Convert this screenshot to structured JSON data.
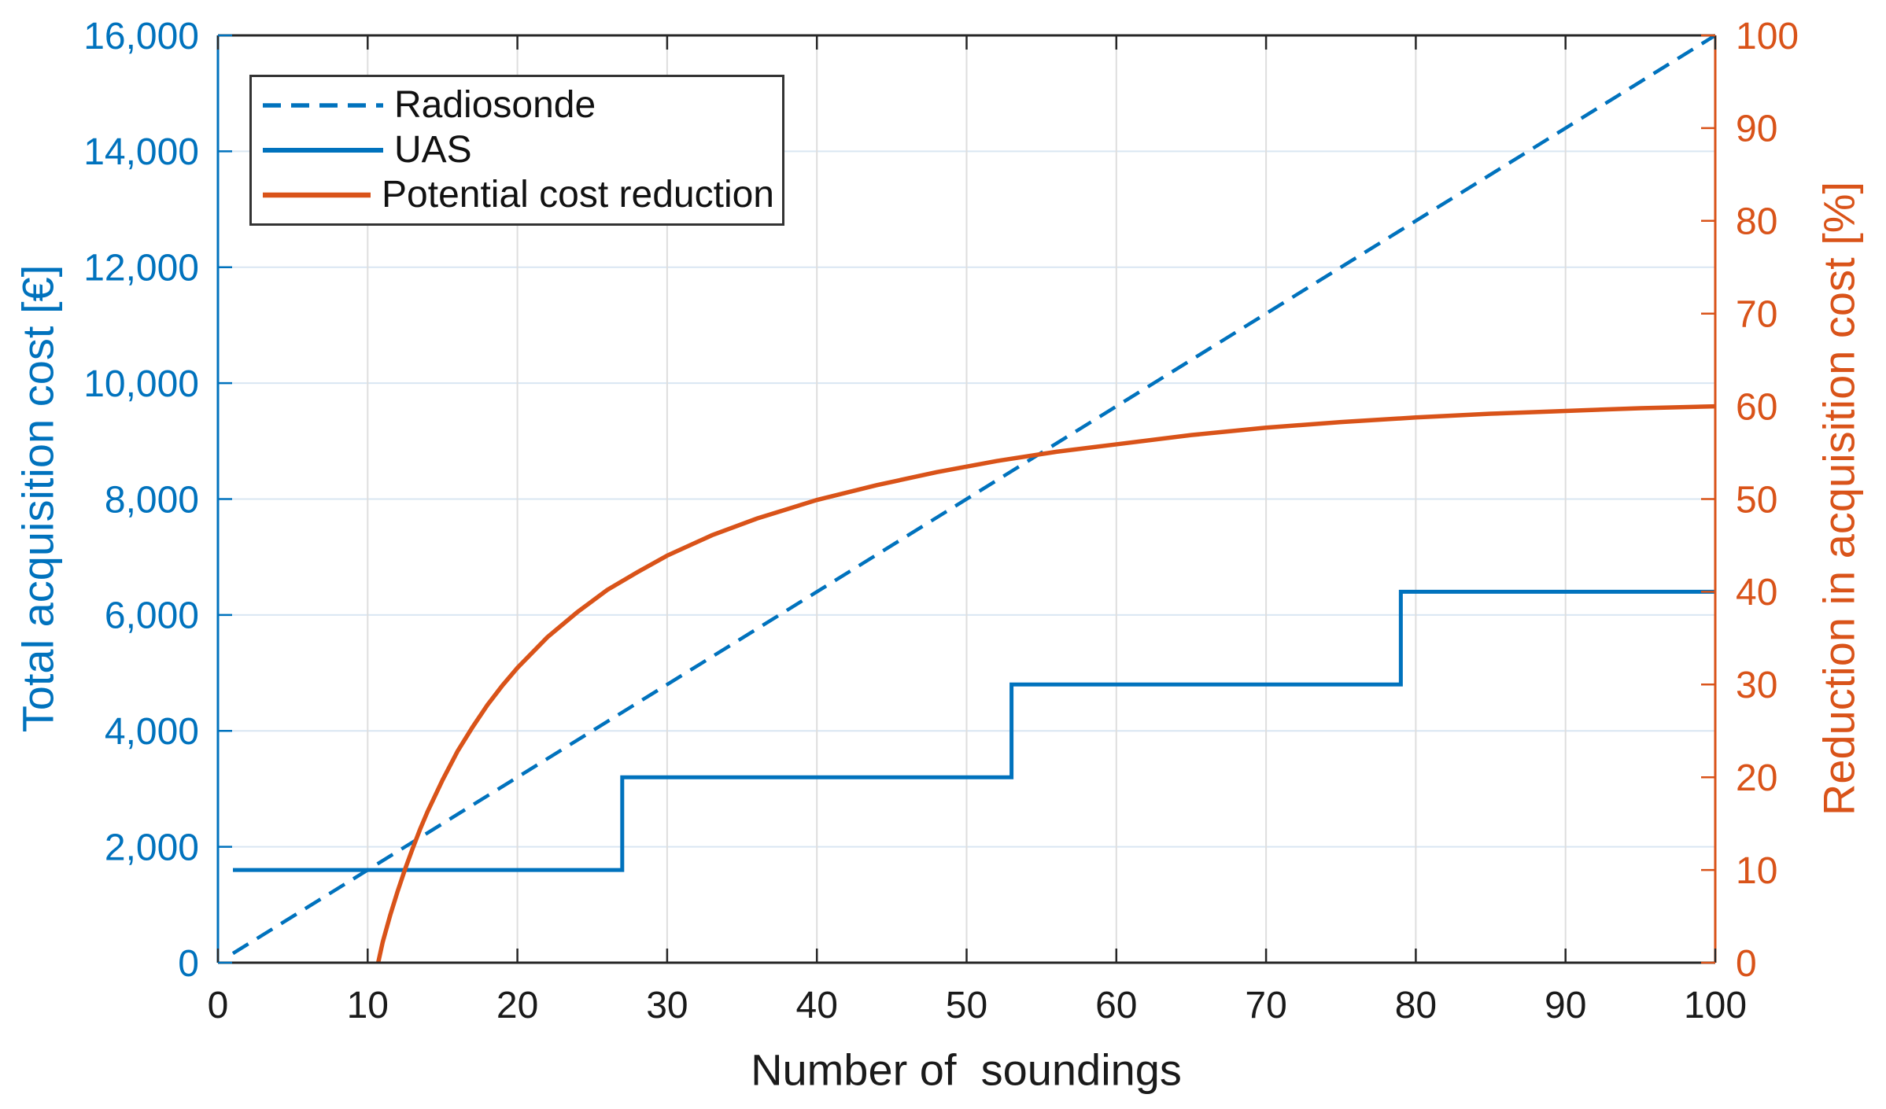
{
  "chart_data": {
    "type": "line",
    "title": "",
    "background": "#FFFFFF",
    "x_axis": {
      "label": "Number of  soundings",
      "range": [
        0,
        100
      ],
      "ticks": [
        0,
        10,
        20,
        30,
        40,
        50,
        60,
        70,
        80,
        90,
        100
      ],
      "color": "#262626"
    },
    "left_y_axis": {
      "label": "Total acquisition cost [€]",
      "range": [
        0,
        16000
      ],
      "ticks": [
        0,
        2000,
        4000,
        6000,
        8000,
        10000,
        12000,
        14000,
        16000
      ],
      "tick_labels": [
        "0",
        "2,000",
        "4,000",
        "6,000",
        "8,000",
        "10,000",
        "12,000",
        "14,000",
        "16,000"
      ],
      "color": "#0072BD"
    },
    "right_y_axis": {
      "label": "Reduction in acquisition cost [%]",
      "range": [
        0,
        100
      ],
      "ticks": [
        0,
        10,
        20,
        30,
        40,
        50,
        60,
        70,
        80,
        90,
        100
      ],
      "tick_labels": [
        "0",
        "10",
        "20",
        "30",
        "40",
        "50",
        "60",
        "70",
        "80",
        "90",
        "100"
      ],
      "color": "#D95319"
    },
    "grid": {
      "horizontal_at_left_values": [
        2000,
        4000,
        6000,
        8000,
        10000,
        12000,
        14000
      ],
      "vertical_at_x_values": [
        10,
        20,
        30,
        40,
        50,
        60,
        70,
        80,
        90
      ],
      "horizontal_color": "#D9E6F2",
      "vertical_color": "#DEDEDE"
    },
    "legend": {
      "position": "top-left",
      "items": [
        "Radiosonde",
        "UAS",
        "Potential cost reduction"
      ]
    },
    "series": [
      {
        "name": "Radiosonde",
        "axis": "left",
        "style": "dashed",
        "color": "#0072BD",
        "width": 4.5,
        "points": [
          [
            1,
            160
          ],
          [
            100,
            16000
          ]
        ]
      },
      {
        "name": "UAS",
        "axis": "left",
        "style": "solid",
        "color": "#0072BD",
        "width": 5,
        "points": [
          [
            1,
            1600
          ],
          [
            27,
            1600
          ],
          [
            27,
            3200
          ],
          [
            53,
            3200
          ],
          [
            53,
            4800
          ],
          [
            79,
            4800
          ],
          [
            79,
            6400
          ],
          [
            100,
            6400
          ]
        ]
      },
      {
        "name": "Potential cost reduction",
        "axis": "right",
        "style": "solid",
        "color": "#D95319",
        "width": 5.5,
        "points": [
          [
            10.7,
            0
          ],
          [
            11,
            2.2
          ],
          [
            11.5,
            5.1
          ],
          [
            12,
            7.7
          ],
          [
            12.5,
            10.1
          ],
          [
            13,
            12.3
          ],
          [
            13.5,
            14.4
          ],
          [
            14,
            16.3
          ],
          [
            15,
            19.7
          ],
          [
            16,
            22.8
          ],
          [
            17,
            25.4
          ],
          [
            18,
            27.8
          ],
          [
            19,
            29.9
          ],
          [
            20,
            31.8
          ],
          [
            22,
            35.1
          ],
          [
            24,
            37.8
          ],
          [
            26,
            40.2
          ],
          [
            28,
            42.1
          ],
          [
            30,
            43.9
          ],
          [
            33,
            46.1
          ],
          [
            36,
            47.9
          ],
          [
            40,
            49.9
          ],
          [
            44,
            51.5
          ],
          [
            48,
            52.9
          ],
          [
            52,
            54.1
          ],
          [
            56,
            55.1
          ],
          [
            60,
            55.9
          ],
          [
            65,
            56.9
          ],
          [
            70,
            57.7
          ],
          [
            75,
            58.3
          ],
          [
            80,
            58.8
          ],
          [
            85,
            59.2
          ],
          [
            90,
            59.5
          ],
          [
            95,
            59.8
          ],
          [
            100,
            60
          ]
        ]
      }
    ]
  }
}
